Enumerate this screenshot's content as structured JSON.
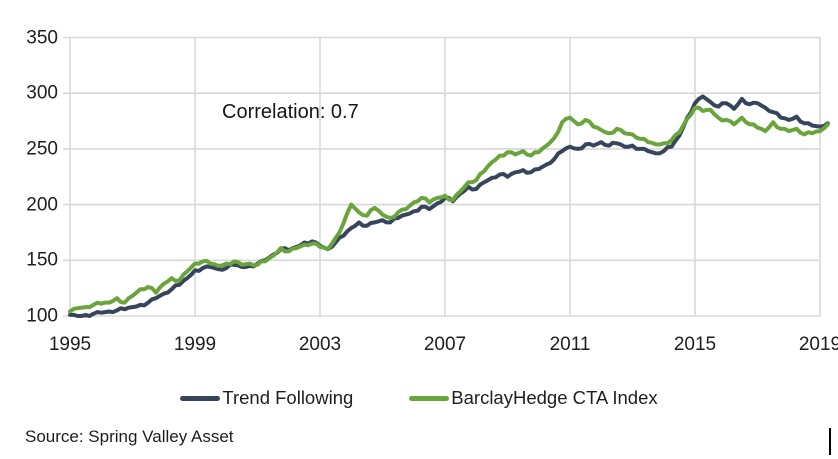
{
  "chart": {
    "annotation": "Correlation: 0.7",
    "source": "Source: Spring Valley Asset"
  },
  "legend": {
    "items": [
      {
        "label": "Trend Following",
        "color": "#37455C"
      },
      {
        "label": "BarclayHedge CTA Index",
        "color": "#6BA43C"
      }
    ]
  },
  "colors": {
    "background": "#FFFFFF",
    "grid": "#D8D8D8",
    "text": "#1E1E1E"
  },
  "chart_data": {
    "type": "line",
    "title": "",
    "annotation": "Correlation: 0.7",
    "xlabel": "",
    "ylabel": "",
    "grid": true,
    "legend_position": "bottom-center",
    "x_axis": {
      "min": 1995,
      "max": 2019,
      "ticks": [
        1995,
        1999,
        2003,
        2007,
        2011,
        2015,
        2019
      ]
    },
    "y_axis": {
      "min": 100,
      "max": 350,
      "ticks": [
        350,
        300,
        250,
        200,
        150,
        100
      ]
    },
    "x_start": 1995,
    "x_step_years": 0.25,
    "series": [
      {
        "name": "Trend Following",
        "color": "#37455C",
        "values": [
          101,
          100,
          101,
          102,
          103,
          104,
          105,
          106,
          108,
          110,
          112,
          116,
          120,
          124,
          128,
          134,
          141,
          143,
          144,
          142,
          143,
          146,
          144,
          145,
          147,
          150,
          155,
          160,
          159,
          162,
          166,
          167,
          163,
          160,
          166,
          172,
          179,
          184,
          181,
          184,
          186,
          184,
          188,
          191,
          194,
          198,
          196,
          201,
          206,
          203,
          210,
          216,
          214,
          220,
          224,
          227,
          225,
          229,
          231,
          229,
          232,
          236,
          241,
          248,
          252,
          250,
          254,
          253,
          256,
          253,
          255,
          252,
          253,
          250,
          248,
          246,
          248,
          252,
          262,
          278,
          291,
          297,
          292,
          288,
          291,
          286,
          295,
          290,
          291,
          287,
          283,
          278,
          276,
          279,
          273,
          271,
          270,
          273
        ]
      },
      {
        "name": "BarclayHedge CTA Index",
        "color": "#6BA43C",
        "values": [
          104,
          107,
          108,
          110,
          111,
          112,
          116,
          112,
          118,
          124,
          126,
          121,
          129,
          134,
          132,
          140,
          147,
          149,
          147,
          145,
          147,
          149,
          146,
          147,
          146,
          149,
          154,
          161,
          158,
          161,
          164,
          165,
          162,
          160,
          170,
          183,
          200,
          193,
          190,
          197,
          191,
          188,
          193,
          196,
          202,
          206,
          202,
          206,
          208,
          204,
          212,
          220,
          222,
          230,
          238,
          244,
          247,
          245,
          248,
          244,
          247,
          253,
          260,
          274,
          278,
          272,
          276,
          270,
          267,
          264,
          268,
          264,
          263,
          259,
          256,
          254,
          255,
          258,
          265,
          277,
          287,
          284,
          285,
          278,
          276,
          272,
          278,
          272,
          269,
          266,
          274,
          268,
          266,
          268,
          263,
          264,
          266,
          272
        ]
      }
    ]
  }
}
